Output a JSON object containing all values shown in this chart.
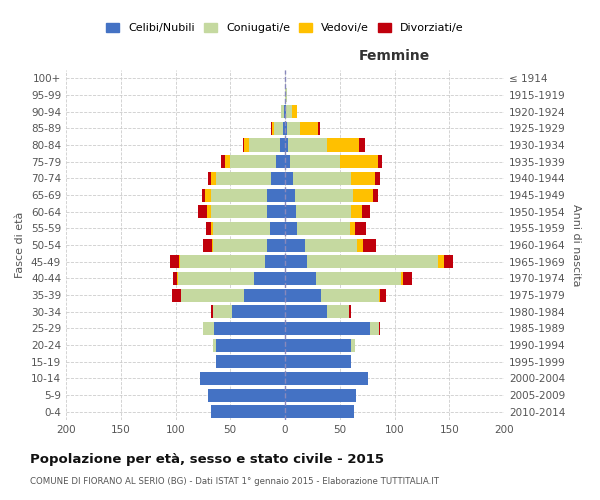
{
  "age_groups": [
    "0-4",
    "5-9",
    "10-14",
    "15-19",
    "20-24",
    "25-29",
    "30-34",
    "35-39",
    "40-44",
    "45-49",
    "50-54",
    "55-59",
    "60-64",
    "65-69",
    "70-74",
    "75-79",
    "80-84",
    "85-89",
    "90-94",
    "95-99",
    "100+"
  ],
  "birth_years": [
    "2010-2014",
    "2005-2009",
    "2000-2004",
    "1995-1999",
    "1990-1994",
    "1985-1989",
    "1980-1984",
    "1975-1979",
    "1970-1974",
    "1965-1969",
    "1960-1964",
    "1955-1959",
    "1950-1954",
    "1945-1949",
    "1940-1944",
    "1935-1939",
    "1930-1934",
    "1925-1929",
    "1920-1924",
    "1915-1919",
    "≤ 1914"
  ],
  "colors": {
    "celibi": "#4472c4",
    "coniugati": "#c5d9a0",
    "vedovi": "#ffc000",
    "divorziati": "#c0000c"
  },
  "males": {
    "celibi": [
      68,
      70,
      78,
      63,
      63,
      65,
      48,
      37,
      28,
      18,
      16,
      14,
      16,
      16,
      13,
      8,
      5,
      2,
      1,
      0,
      0
    ],
    "coniugati": [
      0,
      0,
      0,
      0,
      3,
      10,
      18,
      58,
      70,
      78,
      50,
      52,
      52,
      52,
      50,
      42,
      28,
      8,
      3,
      0,
      0
    ],
    "vedovi": [
      0,
      0,
      0,
      0,
      0,
      0,
      0,
      0,
      1,
      1,
      1,
      2,
      3,
      5,
      5,
      5,
      4,
      2,
      0,
      0,
      0
    ],
    "divorziati": [
      0,
      0,
      0,
      0,
      0,
      0,
      2,
      8,
      3,
      8,
      8,
      4,
      8,
      3,
      2,
      3,
      1,
      1,
      0,
      0,
      0
    ]
  },
  "females": {
    "celibi": [
      63,
      65,
      76,
      60,
      60,
      78,
      38,
      33,
      28,
      20,
      18,
      11,
      10,
      9,
      7,
      5,
      3,
      2,
      1,
      0,
      0
    ],
    "coniugati": [
      0,
      0,
      0,
      0,
      4,
      8,
      20,
      53,
      78,
      120,
      48,
      48,
      50,
      53,
      53,
      45,
      35,
      12,
      5,
      2,
      0
    ],
    "vedovi": [
      0,
      0,
      0,
      0,
      0,
      0,
      0,
      1,
      2,
      5,
      5,
      5,
      10,
      18,
      22,
      35,
      30,
      16,
      5,
      0,
      0
    ],
    "divorziati": [
      0,
      0,
      0,
      0,
      0,
      1,
      2,
      5,
      8,
      8,
      12,
      10,
      8,
      5,
      5,
      4,
      5,
      2,
      0,
      0,
      0
    ]
  },
  "title": "Popolazione per età, sesso e stato civile - 2015",
  "subtitle": "COMUNE DI FIORANO AL SERIO (BG) - Dati ISTAT 1° gennaio 2015 - Elaborazione TUTTITALIA.IT",
  "xlabel_right": "Femmine",
  "ylabel_left": "Fasce di età",
  "ylabel_right": "Anni di nascita",
  "legend_labels": [
    "Celibi/Nubili",
    "Coniugati/e",
    "Vedovi/e",
    "Divorziati/e"
  ],
  "xlim": 200,
  "background_color": "#ffffff",
  "grid_color": "#cccccc"
}
